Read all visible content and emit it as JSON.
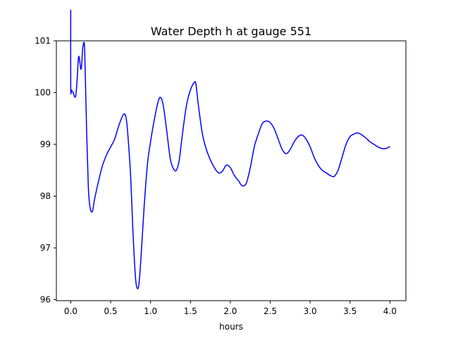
{
  "chart_data": {
    "type": "line",
    "title": "Water Depth h at gauge 551",
    "xlabel": "hours",
    "ylabel": "",
    "xlim": [
      -0.18,
      4.2
    ],
    "ylim": [
      95.98,
      101.0
    ],
    "xticks": [
      0.0,
      0.5,
      1.0,
      1.5,
      2.0,
      2.5,
      3.0,
      3.5,
      4.0
    ],
    "xtick_labels": [
      "0.0",
      "0.5",
      "1.0",
      "1.5",
      "2.0",
      "2.5",
      "3.0",
      "3.5",
      "4.0"
    ],
    "yticks": [
      96,
      97,
      98,
      99,
      100,
      101
    ],
    "ytick_labels": [
      "96",
      "97",
      "98",
      "99",
      "100",
      "101"
    ],
    "grid": false,
    "series": [
      {
        "name": "",
        "color": "#0000ff",
        "x": [
          0.0,
          0.0,
          0.01,
          0.03,
          0.06,
          0.08,
          0.1,
          0.13,
          0.15,
          0.17,
          0.18,
          0.2,
          0.22,
          0.24,
          0.27,
          0.3,
          0.35,
          0.4,
          0.45,
          0.5,
          0.55,
          0.6,
          0.65,
          0.68,
          0.7,
          0.72,
          0.75,
          0.78,
          0.8,
          0.82,
          0.85,
          0.88,
          0.92,
          0.96,
          1.0,
          1.05,
          1.1,
          1.13,
          1.16,
          1.2,
          1.25,
          1.3,
          1.33,
          1.36,
          1.4,
          1.45,
          1.5,
          1.55,
          1.57,
          1.6,
          1.65,
          1.7,
          1.75,
          1.8,
          1.85,
          1.9,
          1.95,
          2.0,
          2.05,
          2.1,
          2.15,
          2.2,
          2.25,
          2.3,
          2.35,
          2.4,
          2.45,
          2.5,
          2.55,
          2.6,
          2.65,
          2.7,
          2.75,
          2.8,
          2.85,
          2.9,
          2.95,
          3.0,
          3.05,
          3.1,
          3.15,
          3.2,
          3.25,
          3.3,
          3.35,
          3.4,
          3.45,
          3.5,
          3.55,
          3.6,
          3.65,
          3.7,
          3.75,
          3.8,
          3.85,
          3.9,
          3.95,
          4.0
        ],
        "y": [
          101.6,
          100.1,
          100.05,
          100.0,
          99.92,
          100.25,
          100.7,
          100.45,
          100.85,
          100.95,
          100.5,
          99.2,
          98.2,
          97.8,
          97.7,
          97.95,
          98.3,
          98.6,
          98.8,
          98.95,
          99.1,
          99.35,
          99.55,
          99.58,
          99.45,
          99.1,
          98.4,
          97.3,
          96.7,
          96.3,
          96.25,
          96.8,
          97.8,
          98.6,
          99.05,
          99.5,
          99.85,
          99.9,
          99.75,
          99.3,
          98.7,
          98.5,
          98.52,
          98.7,
          99.2,
          99.75,
          100.05,
          100.2,
          100.15,
          99.75,
          99.2,
          98.9,
          98.7,
          98.55,
          98.45,
          98.48,
          98.6,
          98.55,
          98.4,
          98.3,
          98.2,
          98.25,
          98.55,
          98.95,
          99.2,
          99.4,
          99.45,
          99.42,
          99.3,
          99.1,
          98.9,
          98.82,
          98.9,
          99.05,
          99.15,
          99.18,
          99.1,
          98.95,
          98.75,
          98.6,
          98.5,
          98.45,
          98.4,
          98.38,
          98.5,
          98.75,
          99.0,
          99.15,
          99.2,
          99.22,
          99.18,
          99.12,
          99.05,
          99.0,
          98.95,
          98.92,
          98.92,
          98.96
        ]
      }
    ]
  }
}
